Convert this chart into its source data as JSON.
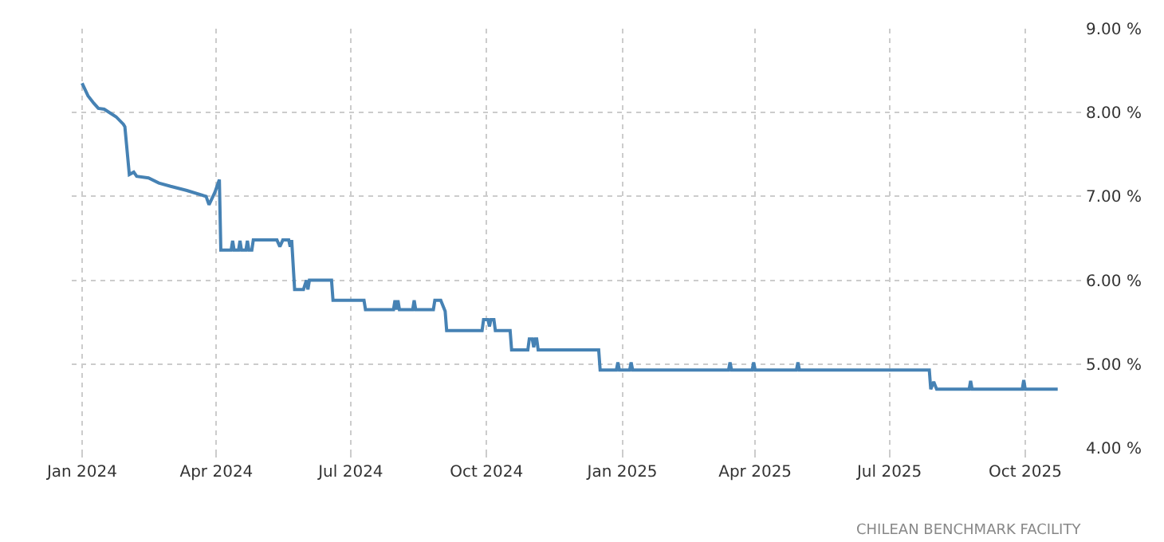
{
  "chart_data": {
    "type": "line",
    "annotations": [
      "CHILEAN BENCHMARK FACILITY"
    ],
    "x": [
      "2024-01-01",
      "2024-01-05",
      "2024-01-09",
      "2024-01-12",
      "2024-01-16",
      "2024-01-24",
      "2024-01-29",
      "2024-01-30",
      "2024-02-02",
      "2024-02-05",
      "2024-02-07",
      "2024-02-15",
      "2024-02-22",
      "2024-03-01",
      "2024-03-12",
      "2024-03-25",
      "2024-03-27",
      "2024-03-31",
      "2024-04-03",
      "2024-04-04",
      "2024-04-11",
      "2024-04-12",
      "2024-04-13",
      "2024-04-16",
      "2024-04-17",
      "2024-04-18",
      "2024-04-21",
      "2024-04-22",
      "2024-04-23",
      "2024-04-25",
      "2024-04-26",
      "2024-05-12",
      "2024-05-14",
      "2024-05-16",
      "2024-05-20",
      "2024-05-21",
      "2024-05-22",
      "2024-05-24",
      "2024-05-30",
      "2024-06-01",
      "2024-06-02",
      "2024-06-03",
      "2024-06-18",
      "2024-06-19",
      "2024-07-10",
      "2024-07-11",
      "2024-07-30",
      "2024-07-31",
      "2024-08-01",
      "2024-08-02",
      "2024-08-03",
      "2024-08-12",
      "2024-08-13",
      "2024-08-14",
      "2024-08-26",
      "2024-08-27",
      "2024-08-31",
      "2024-09-03",
      "2024-09-04",
      "2024-09-28",
      "2024-09-29",
      "2024-10-02",
      "2024-10-03",
      "2024-10-04",
      "2024-10-06",
      "2024-10-07",
      "2024-10-17",
      "2024-10-18",
      "2024-10-29",
      "2024-10-30",
      "2024-11-01",
      "2024-11-02",
      "2024-11-03",
      "2024-11-04",
      "2024-11-05",
      "2024-12-16",
      "2024-12-17",
      "2024-12-28",
      "2024-12-29",
      "2024-12-30",
      "2025-01-06",
      "2025-01-07",
      "2025-01-08",
      "2025-03-14",
      "2025-03-15",
      "2025-03-16",
      "2025-03-30",
      "2025-03-31",
      "2025-04-01",
      "2025-04-29",
      "2025-04-30",
      "2025-05-01",
      "2025-07-28",
      "2025-07-29",
      "2025-07-31",
      "2025-08-02",
      "2025-08-24",
      "2025-08-25",
      "2025-08-26",
      "2025-09-29",
      "2025-09-30",
      "2025-10-01",
      "2025-10-23"
    ],
    "series": [
      {
        "color": "#4682b4",
        "values": [
          8.35,
          8.2,
          8.11,
          8.05,
          8.04,
          7.95,
          7.86,
          7.83,
          7.26,
          7.29,
          7.24,
          7.22,
          7.16,
          7.12,
          7.07,
          7.0,
          6.9,
          7.05,
          7.2,
          6.36,
          6.36,
          6.47,
          6.36,
          6.36,
          6.47,
          6.36,
          6.36,
          6.47,
          6.36,
          6.36,
          6.48,
          6.48,
          6.4,
          6.48,
          6.48,
          6.4,
          6.48,
          5.89,
          5.89,
          6.0,
          5.89,
          6.0,
          6.0,
          5.76,
          5.76,
          5.65,
          5.65,
          5.76,
          5.65,
          5.76,
          5.65,
          5.65,
          5.76,
          5.65,
          5.65,
          5.76,
          5.76,
          5.63,
          5.4,
          5.4,
          5.53,
          5.53,
          5.45,
          5.53,
          5.53,
          5.4,
          5.4,
          5.17,
          5.17,
          5.3,
          5.3,
          5.2,
          5.3,
          5.3,
          5.17,
          5.17,
          4.93,
          4.93,
          5.02,
          4.93,
          4.93,
          5.02,
          4.93,
          4.93,
          5.02,
          4.93,
          4.93,
          5.02,
          4.93,
          4.93,
          5.02,
          4.93,
          4.93,
          4.7,
          4.79,
          4.7,
          4.7,
          4.8,
          4.7,
          4.7,
          4.81,
          4.7,
          4.7
        ]
      }
    ],
    "xlim": [
      "2023-12-25",
      "2025-11-10"
    ],
    "xticks": [
      {
        "value": "2024-01-01",
        "label": "Jan 2024"
      },
      {
        "value": "2024-04-01",
        "label": "Apr 2024"
      },
      {
        "value": "2024-07-01",
        "label": "Jul 2024"
      },
      {
        "value": "2024-10-01",
        "label": "Oct 2024"
      },
      {
        "value": "2025-01-01",
        "label": "Jan 2025"
      },
      {
        "value": "2025-04-01",
        "label": "Apr 2025"
      },
      {
        "value": "2025-07-01",
        "label": "Jul 2025"
      },
      {
        "value": "2025-10-01",
        "label": "Oct 2025"
      }
    ],
    "ylim": [
      4,
      9
    ],
    "yticks": [
      {
        "value": 4,
        "label": "4.00 %"
      },
      {
        "value": 5,
        "label": "5.00 %"
      },
      {
        "value": 6,
        "label": "6.00 %"
      },
      {
        "value": 7,
        "label": "7.00 %"
      },
      {
        "value": 8,
        "label": "8.00 %"
      },
      {
        "value": 9,
        "label": "9.00 %"
      }
    ],
    "grid": true,
    "line_style": "solid",
    "marker": "none"
  }
}
